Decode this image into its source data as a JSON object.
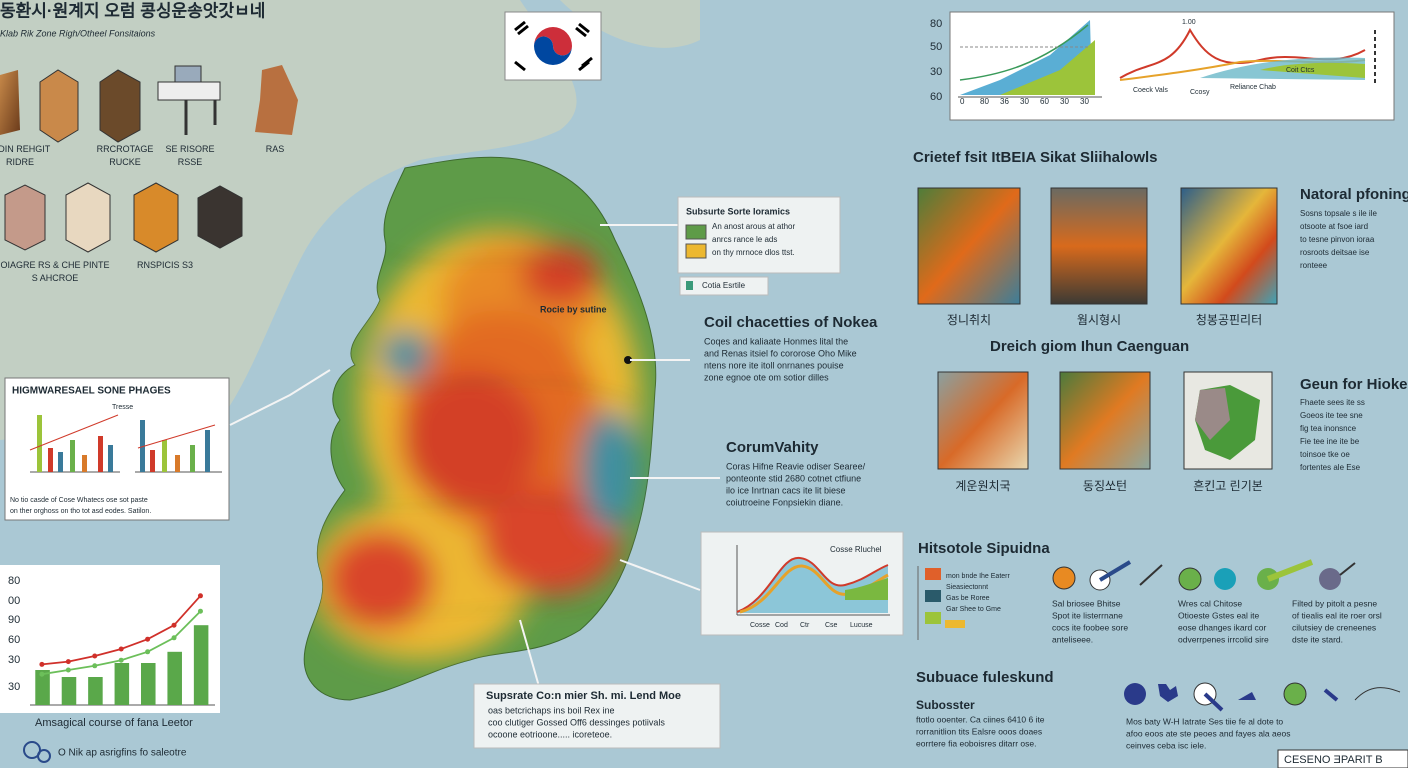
{
  "header": {
    "title": "동환시·원계지 오럼 콩싱운송앗갓ㅂ네",
    "subtitle": "Klab Rik Zone Righ/Otheel Fonsitaions"
  },
  "icons": {
    "row1": [
      "SIDIN REHGIT\nRIDRE",
      "RRCROTAGE\nRUCKE",
      "SE RISORE\nRSSE",
      "RAS"
    ],
    "row2": [
      "OIAGRE RS & CHE PINTE\nS AHCROE",
      "RNSPICIS S3"
    ]
  },
  "left_panel": {
    "title": "HIGMWARESAEL SONE PHAGES",
    "inner_label": "Tresse",
    "caption": [
      "No tio casde of Cose Whatecs ose sot paste",
      "on ther orghoss on tho tot asd eodes. Satilon."
    ]
  },
  "bar_chart": {
    "y_labels": [
      "80",
      "00",
      "90",
      "60",
      "30",
      "30"
    ],
    "ylim": [
      0,
      100
    ],
    "values": [
      25,
      20,
      20,
      30,
      30,
      38,
      57
    ],
    "lines": [
      {
        "color": "#d0302a",
        "values": [
          29,
          31,
          35,
          40,
          47,
          57,
          78
        ]
      },
      {
        "color": "#6cbf5a",
        "values": [
          22,
          25,
          28,
          32,
          38,
          48,
          67
        ]
      }
    ],
    "caption": "Amsagical course of fana Leetor",
    "footer": "O Nik ap asrigfins fo saleotre"
  },
  "map": {
    "region_label": "Rocie by sutine"
  },
  "legend_box": {
    "title": "Subsurte Sorte Ioramics",
    "lines": [
      "An anost arous at athor",
      "anrcs rance le ads",
      "on thy mrnoce dlos ttst."
    ],
    "note": "Cotia Esrtile"
  },
  "coil": {
    "title": "Coil chacetties of Nokea",
    "body": [
      "Coqes and kaliaate Honmes lital the",
      "and Renas itsiel fo cororose Oho Mike",
      "ntens nore ite itoll onrnanes pouise",
      "zone egnoe ote om sotior dilles"
    ]
  },
  "community": {
    "title": "CorumVahity",
    "body": [
      "Coras Hifne Reavie odiser Searee/",
      "ponteonte stid 2680 cotnet ctfiune",
      "ilo ice Inrtnan cacs ite lit biese",
      "coiutroeine Fonpsiekin diane."
    ]
  },
  "mid_chart": {
    "title": "Cosse Rluchel",
    "x_labels": [
      "Cosse",
      "Cod",
      "Ctr",
      "Cse",
      "Lucuse"
    ]
  },
  "bottom_callout": {
    "title": "Supsrate Co:n mier Sh. mi. Lend Moe",
    "body": [
      "oas betcrichaps ins boil Rex ine",
      "coo clutiger Gossed Off6 dessinges potiivals",
      "ocoone eotrioone..... icoreteoe."
    ]
  },
  "top_chart": {
    "y_labels": [
      "80",
      "50",
      "30",
      "60"
    ],
    "x_labels": [
      "0",
      "80",
      "36",
      "30",
      "60",
      "30",
      "30"
    ],
    "right_labels": [
      "Coeck Vals",
      "Ccosy",
      "Reliance Chab",
      "Coit Ctcs"
    ],
    "peak_label": "1.00"
  },
  "section1": {
    "title": "Crietef fsit ItBEIA Sikat Sliihalowls",
    "captions": [
      "정니취치",
      "웜시형시",
      "청봉공핀리터"
    ]
  },
  "natural": {
    "title": "Natoral pfoning",
    "body": [
      "Sosns topsale s ile ile",
      "otsoote at fsoe iard",
      "to tesne pinvon ioraa",
      "rosroots deitsae ise",
      "ronteee"
    ]
  },
  "section2": {
    "title": "Dreich giom Ihun Caenguan",
    "captions": [
      "계운원치국",
      "동징쏘턴",
      "흔킨고 린기본"
    ]
  },
  "geun": {
    "title": "Geun for Hioke",
    "body": [
      "Fhaete sees ite ss",
      "Goeos ite tee sne",
      "fig tea inonsnce",
      "Fie tee ine ite be",
      "toinsoe tke oe",
      "fortentes ale Ese"
    ]
  },
  "hist": {
    "title": "Hitsotole Sipuidna",
    "legend": [
      "mon bnde Ihe Eaterr",
      "Sieasiectonnt",
      "Gas be Roree",
      "Gar Shee to Gme"
    ],
    "col1": [
      "Sal briosee Bhitse",
      "Spot ite listerrnane",
      "cocs ite foobee sore",
      "anteliseee."
    ],
    "col2": [
      "Wres cal Chitose",
      "Otioeste Gstes eal ite",
      "eose dhanges ikard cor",
      "odverrpenes irrcolid sire"
    ],
    "col3": [
      "Filted by pitolt a pesne",
      "of tiealis eal ite roer orsl",
      "cilutsiey de creneenes",
      "dste ite stard."
    ]
  },
  "subsurface": {
    "title": "Subuace fuleskund",
    "lead": "Subosster",
    "body": [
      "ftotlo ooenter. Ca ciines 6410 6 ite",
      "rorranitlion tits Ealsre ooos doaes",
      "eorrtere fia eoboisres ditarr ose."
    ],
    "right": [
      "Mos baty W-H Iatrate Ses tiie fe al dote to",
      "afoo eoos ate ste peoes and fayes ala aeos",
      "ceinves ceba isc iele."
    ],
    "footer": "CESENO ƎPARIT B"
  }
}
